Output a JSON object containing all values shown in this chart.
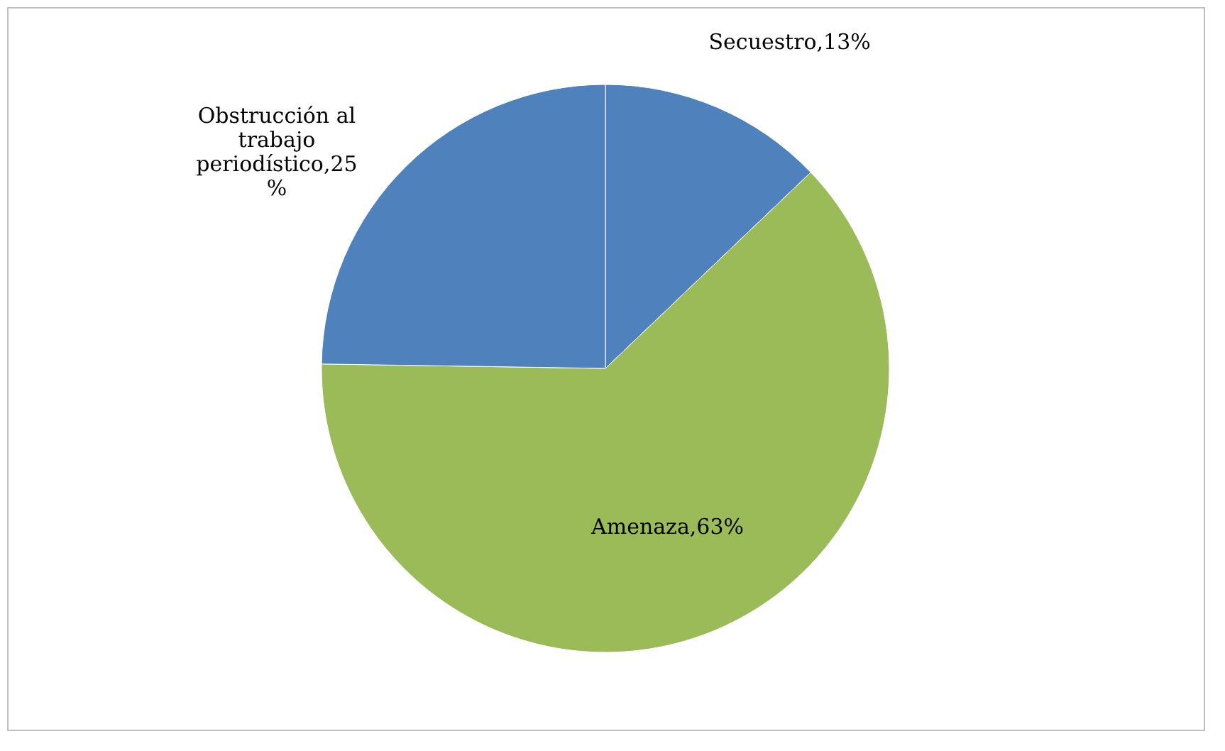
{
  "chart_data": {
    "type": "pie",
    "categories": [
      "Secuestro,13%",
      "Amenaza,63%",
      "Obstrucción al trabajo periodístico,25 %"
    ],
    "values": [
      13,
      63,
      25
    ],
    "colors": [
      "#4f81bd",
      "#9bbb59",
      "#4f81bd"
    ],
    "legend": false
  }
}
